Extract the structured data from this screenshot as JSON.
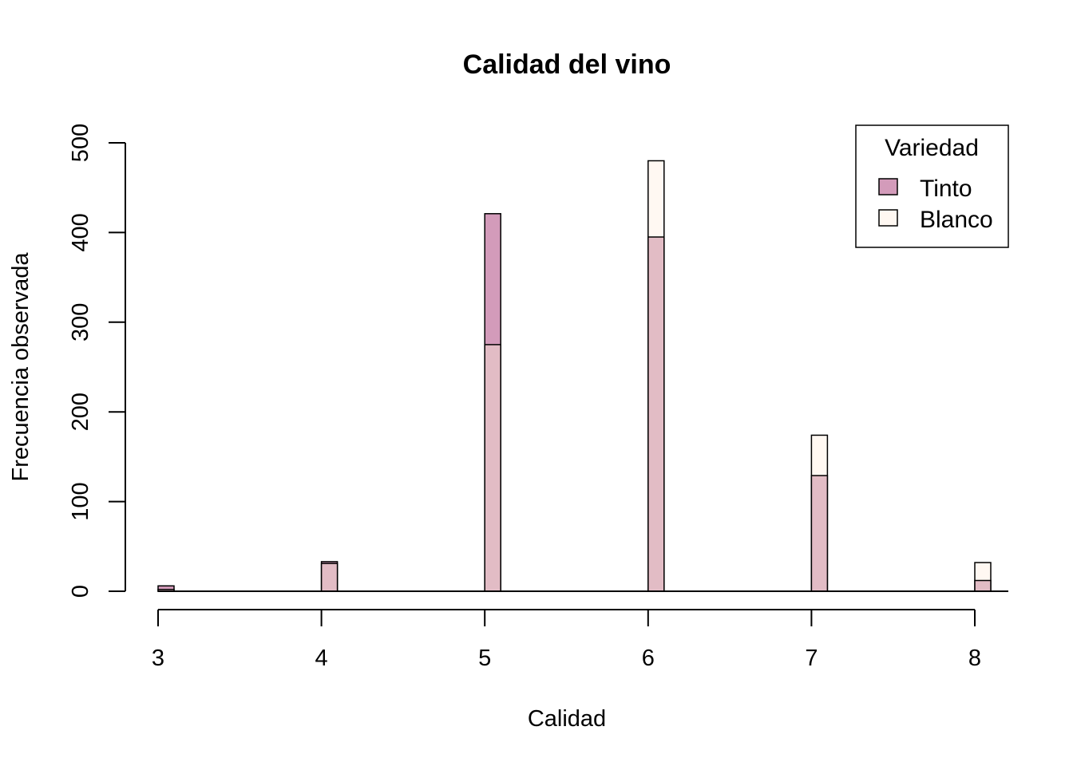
{
  "chart_data": {
    "type": "bar",
    "title": "Calidad del vino",
    "xlabel": "Calidad",
    "ylabel": "Frecuencia observada",
    "x": [
      3,
      4,
      5,
      6,
      7,
      8
    ],
    "x_ticks": [
      "3",
      "4",
      "5",
      "6",
      "7",
      "8"
    ],
    "y_ticks": [
      "0",
      "100",
      "200",
      "300",
      "400",
      "500"
    ],
    "xlim": [
      3,
      8
    ],
    "ylim": [
      0,
      500
    ],
    "grid": false,
    "note": "Red and white counts are overlaid (each bar drawn from 0); overlapping region appears blended.",
    "series": [
      {
        "name": "Tinto",
        "color": "#d39bba",
        "values": [
          6,
          33,
          421,
          395,
          129,
          12
        ]
      },
      {
        "name": "Blanco",
        "color": "#fff8f2",
        "values": [
          2,
          31,
          275,
          480,
          174,
          32
        ]
      }
    ],
    "overlap_color": "#e2bcc5",
    "legend": {
      "title": "Variedad",
      "position": "top-right",
      "entries": [
        "Tinto",
        "Blanco"
      ]
    }
  }
}
